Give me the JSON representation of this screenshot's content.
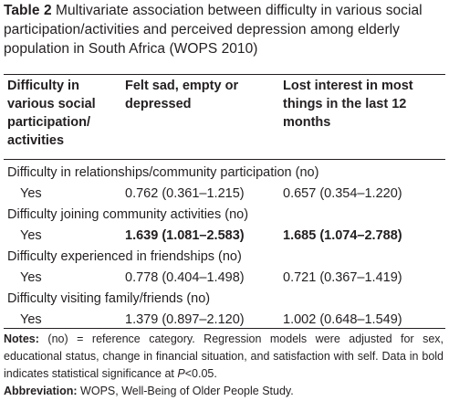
{
  "caption": {
    "label": "Table 2",
    "text": "Multivariate association between difficulty in various social participation/activities and perceived depression among elderly population in South Africa (WOPS 2010)"
  },
  "headers": {
    "col1": "Difficulty in various social participation/ activities",
    "col2": "Felt sad, empty or depressed",
    "col3": "Lost interest in most things in the last 12 months"
  },
  "groups": [
    {
      "title": "Difficulty in relationships/community participation (no)",
      "row": {
        "label": "Yes",
        "felt_sad": "0.762 (0.361–1.215)",
        "lost_interest": "0.657 (0.354–1.220)",
        "significant": false
      }
    },
    {
      "title": "Difficulty joining community activities (no)",
      "row": {
        "label": "Yes",
        "felt_sad": "1.639 (1.081–2.583)",
        "lost_interest": "1.685 (1.074–2.788)",
        "significant": true
      }
    },
    {
      "title": "Difficulty experienced in friendships (no)",
      "row": {
        "label": "Yes",
        "felt_sad": "0.778 (0.404–1.498)",
        "lost_interest": "0.721 (0.367–1.419)",
        "significant": false
      }
    },
    {
      "title": "Difficulty visiting family/friends (no)",
      "row": {
        "label": "Yes",
        "felt_sad": "1.379 (0.897–2.120)",
        "lost_interest": "1.002 (0.648–1.549)",
        "significant": false
      }
    }
  ],
  "notes": {
    "notes_label": "Notes:",
    "notes_text_a": "(no) = reference category. Regression models were adjusted for sex, educational status, change in financial situation, and satisfaction with self. Data in bold indicates statistical significance at ",
    "notes_p": "P",
    "notes_text_b": "<0.05.",
    "abbrev_label": "Abbreviation:",
    "abbrev_text": "WOPS, Well-Being of Older People Study."
  }
}
